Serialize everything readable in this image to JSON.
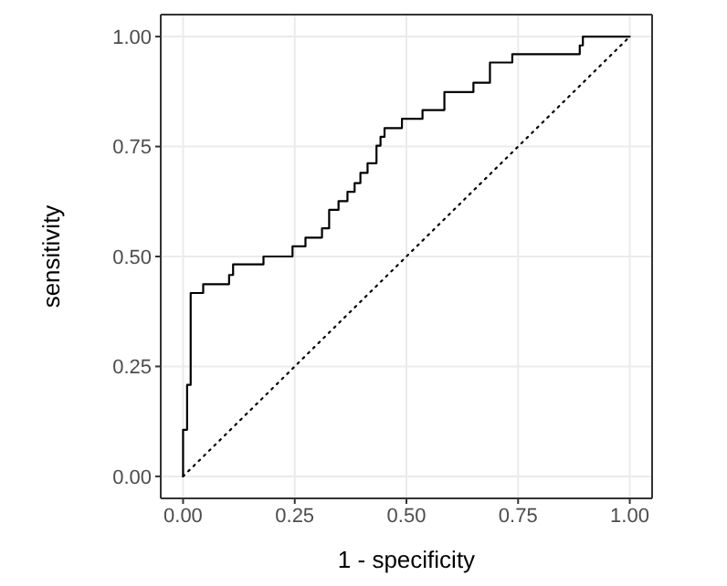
{
  "chart_data": {
    "type": "step",
    "xlabel": "1 - specificity",
    "ylabel": "sensitivity",
    "xlim": [
      -0.05,
      1.05
    ],
    "ylim": [
      -0.05,
      1.05
    ],
    "xticks": [
      {
        "value": 0,
        "label": "0.00"
      },
      {
        "value": 0.25,
        "label": "0.25"
      },
      {
        "value": 0.5,
        "label": "0.50"
      },
      {
        "value": 0.75,
        "label": "0.75"
      },
      {
        "value": 1,
        "label": "1.00"
      }
    ],
    "yticks": [
      {
        "value": 0,
        "label": "0.00"
      },
      {
        "value": 0.25,
        "label": "0.25"
      },
      {
        "value": 0.5,
        "label": "0.50"
      },
      {
        "value": 0.75,
        "label": "0.75"
      },
      {
        "value": 1,
        "label": "1.00"
      }
    ],
    "grid": true,
    "series": [
      {
        "color": "#000000",
        "line_style": "solid",
        "x": [
          0,
          0,
          0.009,
          0.017,
          0.045,
          0.103,
          0.112,
          0.18,
          0.245,
          0.274,
          0.311,
          0.327,
          0.348,
          0.368,
          0.384,
          0.397,
          0.413,
          0.433,
          0.442,
          0.451,
          0.49,
          0.536,
          0.585,
          0.65,
          0.687,
          0.737,
          0.888,
          0.895,
          1
        ],
        "values": [
          0,
          0.106,
          0.208,
          0.417,
          0.437,
          0.458,
          0.482,
          0.5,
          0.523,
          0.543,
          0.564,
          0.606,
          0.626,
          0.647,
          0.667,
          0.69,
          0.712,
          0.752,
          0.772,
          0.792,
          0.813,
          0.833,
          0.874,
          0.895,
          0.941,
          0.96,
          0.98,
          1,
          1
        ]
      },
      {
        "type": "line",
        "color": "#000000",
        "line_style": "dotted",
        "x": [
          0,
          1
        ],
        "values": [
          0,
          1
        ]
      }
    ]
  }
}
